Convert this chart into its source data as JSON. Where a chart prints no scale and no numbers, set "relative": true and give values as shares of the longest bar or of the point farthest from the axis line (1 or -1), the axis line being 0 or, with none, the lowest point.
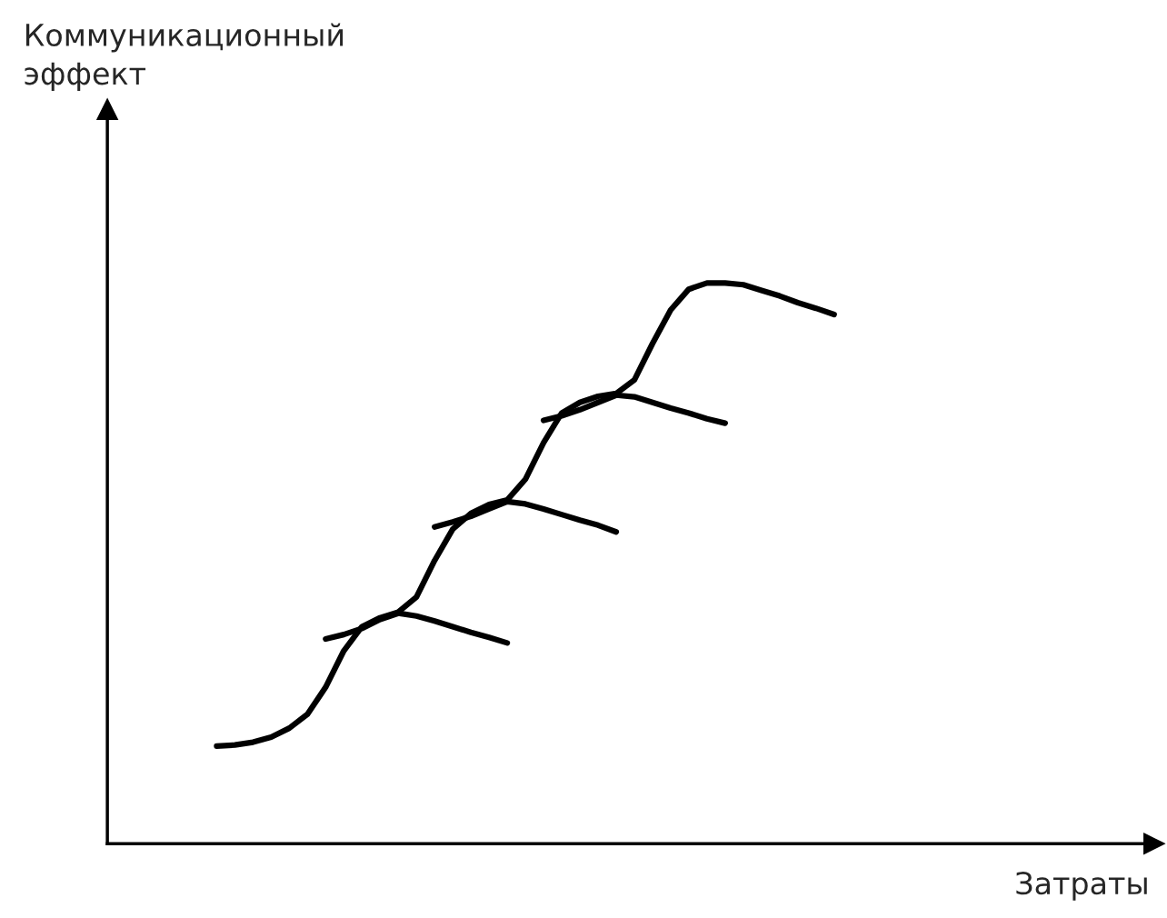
{
  "chart_data": {
    "type": "line",
    "relative": true,
    "annotations": [
      "Коммуникационный\nэффект",
      "Затраты"
    ],
    "marker": "none",
    "line_style": "solid",
    "categories": [
      null,
      null,
      null,
      null,
      null,
      null,
      null,
      null,
      null,
      null,
      null,
      null,
      null,
      null,
      null,
      null,
      null,
      null,
      null,
      null,
      null,
      null,
      null,
      null,
      null,
      null,
      null,
      null,
      null,
      null,
      null,
      null,
      null,
      null,
      null
    ],
    "series": [
      {
        "color": "#000000",
        "values": [
          0.174,
          0.176,
          0.181,
          0.19,
          0.206,
          0.231,
          0.279,
          0.344,
          0.387,
          0.403,
          0.413,
          0.44,
          0.505,
          0.561,
          0.589,
          0.605,
          0.613,
          0.65,
          0.715,
          0.768,
          0.787,
          0.798,
          0.803,
          0.827,
          0.892,
          0.952,
          0.989,
          1.0,
          1.0,
          0.997,
          0.987,
          0.977,
          0.965,
          0.955,
          0.944
        ]
      },
      {
        "color": "#000000",
        "values": [
          null,
          null,
          null,
          null,
          null,
          null,
          0.365,
          0.373,
          0.384,
          0.4,
          0.411,
          0.406,
          0.397,
          0.387,
          0.377,
          0.368,
          0.358,
          null,
          null,
          null,
          null,
          null,
          null,
          null,
          null,
          null,
          null,
          null,
          null,
          null,
          null,
          null,
          null,
          null,
          null
        ]
      },
      {
        "color": "#000000",
        "values": [
          null,
          null,
          null,
          null,
          null,
          null,
          null,
          null,
          null,
          null,
          null,
          null,
          0.565,
          0.574,
          0.584,
          0.597,
          0.61,
          0.606,
          0.597,
          0.587,
          0.577,
          0.568,
          0.556,
          null,
          null,
          null,
          null,
          null,
          null,
          null,
          null,
          null,
          null,
          null,
          null
        ]
      },
      {
        "color": "#000000",
        "values": [
          null,
          null,
          null,
          null,
          null,
          null,
          null,
          null,
          null,
          null,
          null,
          null,
          null,
          null,
          null,
          null,
          null,
          null,
          0.755,
          0.763,
          0.774,
          0.787,
          0.8,
          0.797,
          0.787,
          0.777,
          0.768,
          0.758,
          0.75,
          null,
          null,
          null,
          null,
          null,
          null
        ]
      }
    ]
  }
}
